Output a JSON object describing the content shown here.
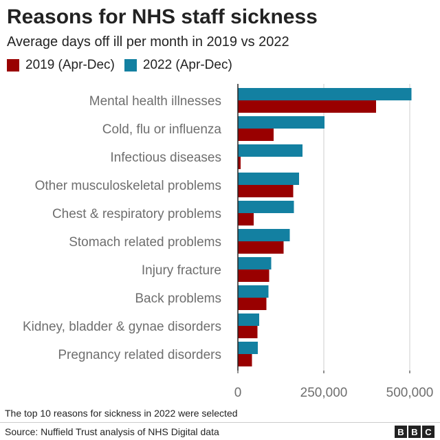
{
  "title": "Reasons for NHS staff sickness",
  "subtitle": "Average days off ill per month in 2019 vs 2022",
  "footnote": "The top 10 reasons for sickness in 2022 were selected",
  "source": "Source: Nuffield Trust analysis of NHS Digital data",
  "logo": [
    "B",
    "B",
    "C"
  ],
  "colors": {
    "2019": "#990000",
    "2022": "#1380a1",
    "grid": "#cccccc",
    "axis": "#222222",
    "label": "#6e6e6e"
  },
  "chart_data": {
    "type": "bar",
    "orientation": "horizontal",
    "categories": [
      "Mental health illnesses",
      "Cold, flu or influenza",
      "Infectious diseases",
      "Other musculoskeletal problems",
      "Chest & respiratory problems",
      "Stomach related problems",
      "Injury fracture",
      "Back problems",
      "Kidney, bladder & gynae disorders",
      "Pregnancy related disorders"
    ],
    "series": [
      {
        "name": "2022 (Apr-Dec)",
        "values": [
          505000,
          252000,
          188000,
          178000,
          163000,
          151000,
          97000,
          89000,
          62000,
          58000
        ]
      },
      {
        "name": "2019 (Apr-Dec)",
        "values": [
          402000,
          104000,
          8000,
          161000,
          46000,
          133000,
          91000,
          83000,
          57000,
          41000
        ]
      }
    ],
    "legend_order": [
      "2019 (Apr-Dec)",
      "2022 (Apr-Dec)"
    ],
    "xlim": [
      0,
      550000
    ],
    "xticks": [
      0,
      250000,
      500000
    ],
    "xtick_labels": [
      "0",
      "250,000",
      "500,000"
    ],
    "grid": true,
    "legend_position": "top-left"
  }
}
